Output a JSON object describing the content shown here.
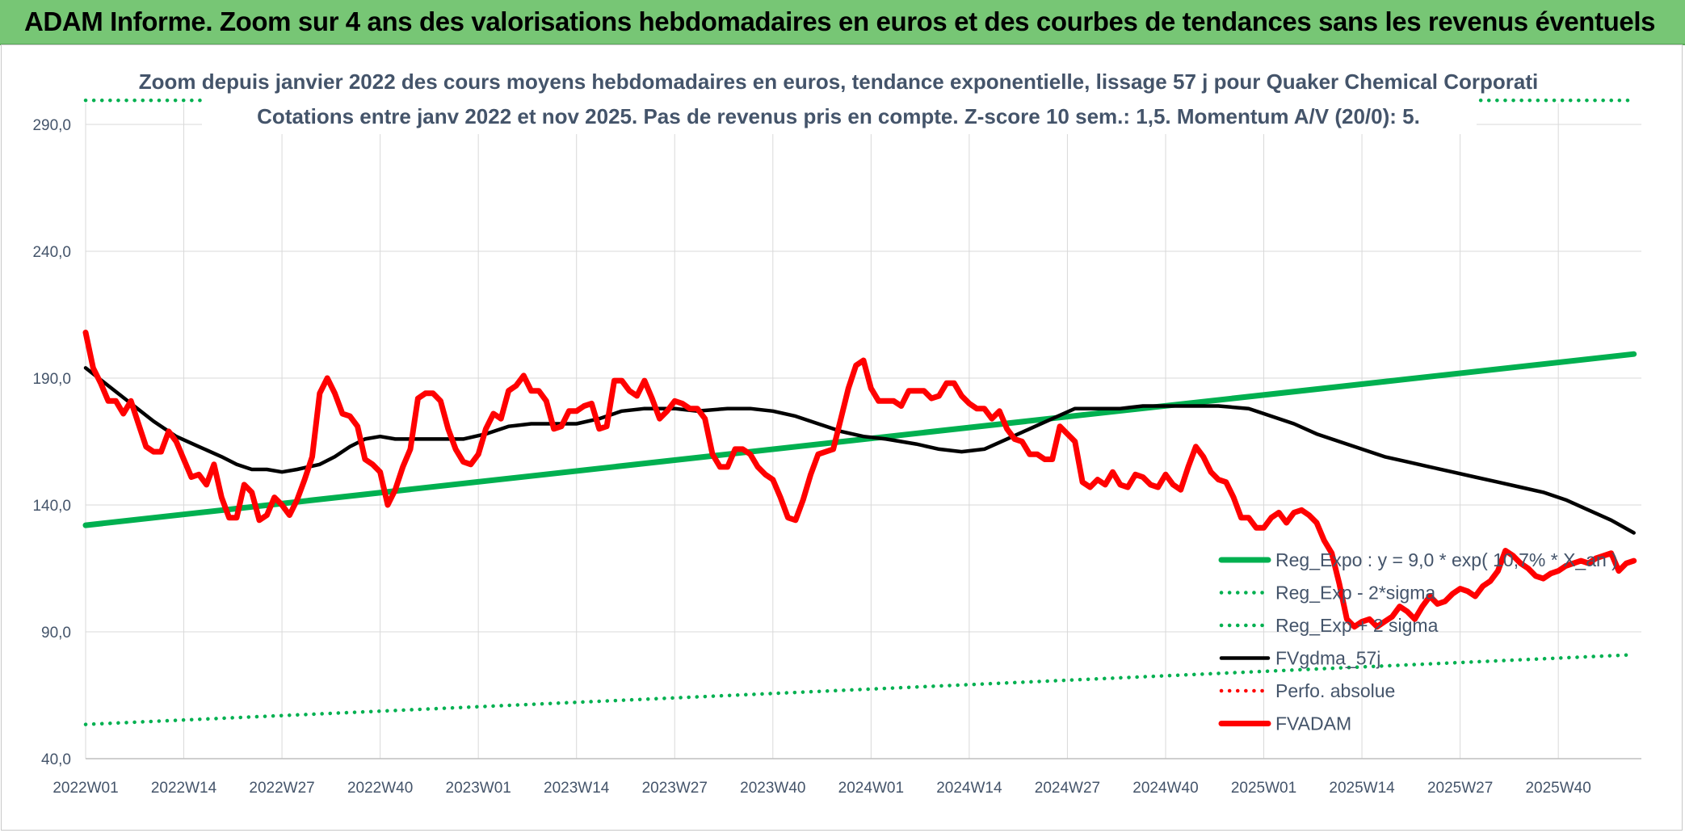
{
  "header": {
    "title": "ADAM Informe. Zoom sur 4 ans des valorisations hebdomadaires en euros et des courbes de tendances sans les revenus éventuels"
  },
  "chart_data": {
    "type": "line",
    "title": "Zoom depuis janvier 2022 des cours moyens hebdomadaires en euros, tendance exponentielle, lissage 57 j pour Quaker Chemical Corporati",
    "subtitle": "Cotations entre janv 2022 et nov 2025. Pas de revenus pris en compte. Z-score 10 sem.: 1,5. Momentum A/V (20/0): 5.",
    "xlabel": "",
    "ylabel": "",
    "ylim": [
      40,
      300
    ],
    "y_ticks": [
      "290,0",
      "240,0",
      "190,0",
      "140,0",
      "90,0",
      "40,0"
    ],
    "x_ticks": [
      "2022W01",
      "2022W14",
      "2022W27",
      "2022W40",
      "2023W01",
      "2023W14",
      "2023W27",
      "2023W40",
      "2024W01",
      "2024W14",
      "2024W27",
      "2024W40",
      "2025W01",
      "2025W14",
      "2025W27",
      "2025W40"
    ],
    "x_range_weeks": [
      0,
      206
    ],
    "grid": true,
    "legend_position": "bottom-right",
    "colors": {
      "reg_expo": "#00b050",
      "sigma_lines": "#00b050",
      "fvgdma": "#000000",
      "perfo": "#ff0000",
      "fvadam": "#ff0000",
      "grid": "#d9d9d9",
      "text": "#44546a"
    },
    "series": [
      {
        "name": "Reg_Expo : y = 9,0 * exp( 10,7% * X_an )",
        "style": "solid-thick",
        "points": [
          [
            0,
            132.0
          ],
          [
            205,
            199.5
          ]
        ]
      },
      {
        "name": "Reg_Exp - 2*sigma",
        "style": "dotted",
        "points": [
          [
            0,
            53.5
          ],
          [
            205,
            81.0
          ]
        ]
      },
      {
        "name": "Reg_Exp + 2 sigma",
        "style": "dotted",
        "points": [
          [
            0,
            299.5
          ],
          [
            205,
            299.5
          ]
        ]
      },
      {
        "name": "FVgdma_57j",
        "style": "solid",
        "points": [
          [
            0,
            194
          ],
          [
            3,
            187
          ],
          [
            6,
            180
          ],
          [
            9,
            173
          ],
          [
            12,
            167
          ],
          [
            15,
            163
          ],
          [
            18,
            159
          ],
          [
            20,
            156
          ],
          [
            22,
            154
          ],
          [
            24,
            154
          ],
          [
            26,
            153
          ],
          [
            28,
            154
          ],
          [
            31,
            156
          ],
          [
            33,
            159
          ],
          [
            35,
            163
          ],
          [
            37,
            166
          ],
          [
            39,
            167
          ],
          [
            41,
            166
          ],
          [
            44,
            166
          ],
          [
            47,
            166
          ],
          [
            50,
            166
          ],
          [
            53,
            168
          ],
          [
            56,
            171
          ],
          [
            59,
            172
          ],
          [
            62,
            172
          ],
          [
            65,
            172
          ],
          [
            68,
            174
          ],
          [
            71,
            177
          ],
          [
            74,
            178
          ],
          [
            78,
            178
          ],
          [
            81,
            177
          ],
          [
            85,
            178
          ],
          [
            88,
            178
          ],
          [
            91,
            177
          ],
          [
            94,
            175
          ],
          [
            97,
            172
          ],
          [
            100,
            169
          ],
          [
            103,
            167
          ],
          [
            106,
            166
          ],
          [
            110,
            164
          ],
          [
            113,
            162
          ],
          [
            116,
            161
          ],
          [
            119,
            162
          ],
          [
            122,
            166
          ],
          [
            125,
            170
          ],
          [
            128,
            174
          ],
          [
            131,
            178
          ],
          [
            134,
            178
          ],
          [
            137,
            178
          ],
          [
            140,
            179
          ],
          [
            143,
            179
          ],
          [
            147,
            179
          ],
          [
            150,
            179
          ],
          [
            154,
            178
          ],
          [
            157,
            175
          ],
          [
            160,
            172
          ],
          [
            163,
            168
          ],
          [
            166,
            165
          ],
          [
            169,
            162
          ],
          [
            172,
            159
          ],
          [
            175,
            157
          ],
          [
            178,
            155
          ],
          [
            181,
            153
          ],
          [
            184,
            151
          ],
          [
            187,
            149
          ],
          [
            190,
            147
          ],
          [
            193,
            145
          ],
          [
            196,
            142
          ],
          [
            199,
            138
          ],
          [
            202,
            134
          ],
          [
            205,
            129
          ]
        ]
      },
      {
        "name": "Perfo. absolue",
        "style": "dotted",
        "points": []
      },
      {
        "name": "FVADAM",
        "style": "solid-thick",
        "points": [
          [
            0,
            208
          ],
          [
            1,
            194
          ],
          [
            2,
            188
          ],
          [
            3,
            181
          ],
          [
            4,
            181
          ],
          [
            5,
            176
          ],
          [
            6,
            181
          ],
          [
            7,
            172
          ],
          [
            8,
            163
          ],
          [
            9,
            161
          ],
          [
            10,
            161
          ],
          [
            11,
            169
          ],
          [
            12,
            165
          ],
          [
            13,
            158
          ],
          [
            14,
            151
          ],
          [
            15,
            152
          ],
          [
            16,
            148
          ],
          [
            17,
            156
          ],
          [
            18,
            143
          ],
          [
            19,
            135
          ],
          [
            20,
            135
          ],
          [
            21,
            148
          ],
          [
            22,
            145
          ],
          [
            23,
            134
          ],
          [
            24,
            136
          ],
          [
            25,
            143
          ],
          [
            26,
            140
          ],
          [
            27,
            136
          ],
          [
            28,
            142
          ],
          [
            29,
            150
          ],
          [
            30,
            159
          ],
          [
            31,
            184
          ],
          [
            32,
            190
          ],
          [
            33,
            184
          ],
          [
            34,
            176
          ],
          [
            35,
            175
          ],
          [
            36,
            171
          ],
          [
            37,
            158
          ],
          [
            38,
            156
          ],
          [
            39,
            153
          ],
          [
            40,
            140
          ],
          [
            41,
            146
          ],
          [
            42,
            155
          ],
          [
            43,
            162
          ],
          [
            44,
            182
          ],
          [
            45,
            184
          ],
          [
            46,
            184
          ],
          [
            47,
            181
          ],
          [
            48,
            170
          ],
          [
            49,
            162
          ],
          [
            50,
            157
          ],
          [
            51,
            156
          ],
          [
            52,
            160
          ],
          [
            53,
            170
          ],
          [
            54,
            176
          ],
          [
            55,
            174
          ],
          [
            56,
            185
          ],
          [
            57,
            187
          ],
          [
            58,
            191
          ],
          [
            59,
            185
          ],
          [
            60,
            185
          ],
          [
            61,
            181
          ],
          [
            62,
            170
          ],
          [
            63,
            171
          ],
          [
            64,
            177
          ],
          [
            65,
            177
          ],
          [
            66,
            179
          ],
          [
            67,
            180
          ],
          [
            68,
            170
          ],
          [
            69,
            171
          ],
          [
            70,
            189
          ],
          [
            71,
            189
          ],
          [
            72,
            185
          ],
          [
            73,
            183
          ],
          [
            74,
            189
          ],
          [
            75,
            182
          ],
          [
            76,
            174
          ],
          [
            77,
            177
          ],
          [
            78,
            181
          ],
          [
            79,
            180
          ],
          [
            80,
            178
          ],
          [
            81,
            178
          ],
          [
            82,
            174
          ],
          [
            83,
            160
          ],
          [
            84,
            155
          ],
          [
            85,
            155
          ],
          [
            86,
            162
          ],
          [
            87,
            162
          ],
          [
            88,
            160
          ],
          [
            89,
            155
          ],
          [
            90,
            152
          ],
          [
            91,
            150
          ],
          [
            92,
            143
          ],
          [
            93,
            135
          ],
          [
            94,
            134
          ],
          [
            95,
            142
          ],
          [
            96,
            152
          ],
          [
            97,
            160
          ],
          [
            98,
            161
          ],
          [
            99,
            162
          ],
          [
            100,
            174
          ],
          [
            101,
            186
          ],
          [
            102,
            195
          ],
          [
            103,
            197
          ],
          [
            104,
            186
          ],
          [
            105,
            181
          ],
          [
            106,
            181
          ],
          [
            107,
            181
          ],
          [
            108,
            179
          ],
          [
            109,
            185
          ],
          [
            110,
            185
          ],
          [
            111,
            185
          ],
          [
            112,
            182
          ],
          [
            113,
            183
          ],
          [
            114,
            188
          ],
          [
            115,
            188
          ],
          [
            116,
            183
          ],
          [
            117,
            180
          ],
          [
            118,
            178
          ],
          [
            119,
            178
          ],
          [
            120,
            174
          ],
          [
            121,
            177
          ],
          [
            122,
            170
          ],
          [
            123,
            166
          ],
          [
            124,
            165
          ],
          [
            125,
            160
          ],
          [
            126,
            160
          ],
          [
            127,
            158
          ],
          [
            128,
            158
          ],
          [
            129,
            171
          ],
          [
            130,
            168
          ],
          [
            131,
            165
          ],
          [
            132,
            149
          ],
          [
            133,
            147
          ],
          [
            134,
            150
          ],
          [
            135,
            148
          ],
          [
            136,
            153
          ],
          [
            137,
            148
          ],
          [
            138,
            147
          ],
          [
            139,
            152
          ],
          [
            140,
            151
          ],
          [
            141,
            148
          ],
          [
            142,
            147
          ],
          [
            143,
            152
          ],
          [
            144,
            148
          ],
          [
            145,
            146
          ],
          [
            146,
            155
          ],
          [
            147,
            163
          ],
          [
            148,
            159
          ],
          [
            149,
            153
          ],
          [
            150,
            150
          ],
          [
            151,
            149
          ],
          [
            152,
            143
          ],
          [
            153,
            135
          ],
          [
            154,
            135
          ],
          [
            155,
            131
          ],
          [
            156,
            131
          ],
          [
            157,
            135
          ],
          [
            158,
            137
          ],
          [
            159,
            133
          ],
          [
            160,
            137
          ],
          [
            161,
            138
          ],
          [
            162,
            136
          ],
          [
            163,
            133
          ],
          [
            164,
            126
          ],
          [
            165,
            121
          ],
          [
            166,
            109
          ],
          [
            167,
            95
          ],
          [
            168,
            92
          ],
          [
            169,
            94
          ],
          [
            170,
            95
          ],
          [
            171,
            92
          ],
          [
            172,
            94
          ],
          [
            173,
            96
          ],
          [
            174,
            100
          ],
          [
            175,
            98
          ],
          [
            176,
            95
          ],
          [
            177,
            100
          ],
          [
            178,
            104
          ],
          [
            179,
            101
          ],
          [
            180,
            102
          ],
          [
            181,
            105
          ],
          [
            182,
            107
          ],
          [
            183,
            106
          ],
          [
            184,
            104
          ],
          [
            185,
            108
          ],
          [
            186,
            110
          ],
          [
            187,
            114
          ],
          [
            188,
            122
          ],
          [
            189,
            120
          ],
          [
            190,
            117
          ],
          [
            191,
            115
          ],
          [
            192,
            112
          ],
          [
            193,
            111
          ],
          [
            194,
            113
          ],
          [
            195,
            114
          ],
          [
            196,
            116
          ],
          [
            197,
            117
          ],
          [
            198,
            118
          ],
          [
            199,
            117
          ],
          [
            200,
            119
          ],
          [
            201,
            120
          ],
          [
            202,
            121
          ],
          [
            203,
            114
          ],
          [
            204,
            117
          ],
          [
            205,
            118
          ]
        ]
      }
    ]
  }
}
